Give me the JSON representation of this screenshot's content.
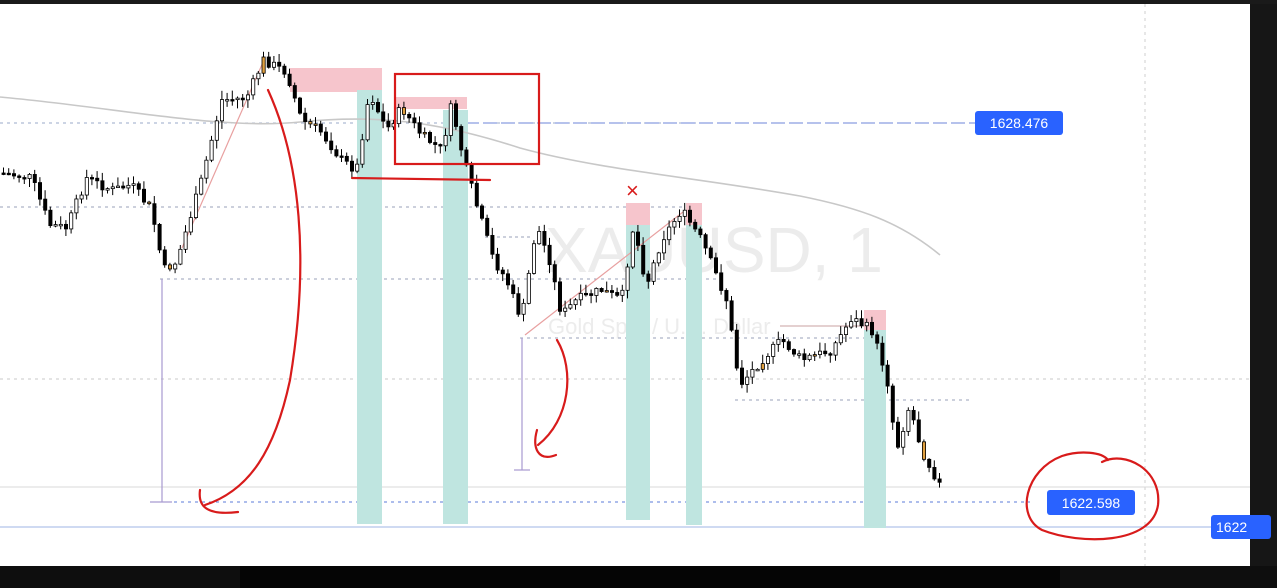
{
  "chart_data": {
    "type": "candlestick",
    "symbol_watermark": "XAUUSD, 1",
    "description_watermark": "Gold Spot / U.S. Dollar",
    "price_labels": [
      {
        "name": "level-1",
        "value": "1628.476"
      },
      {
        "name": "level-2",
        "value": "1622.598"
      },
      {
        "name": "last-price",
        "value": "1622"
      }
    ],
    "annotations": [
      "×"
    ],
    "colors": {
      "up_candle": "#ffffff",
      "down_candle": "#000000",
      "highlight_candle": "#e0a040",
      "price_tag": "#2962ff",
      "supply_zone": "#f6c5cc",
      "demand_bar": "#bfe5e0",
      "pen": "#d81b1b",
      "moving_average": "#c8c8c8"
    }
  }
}
